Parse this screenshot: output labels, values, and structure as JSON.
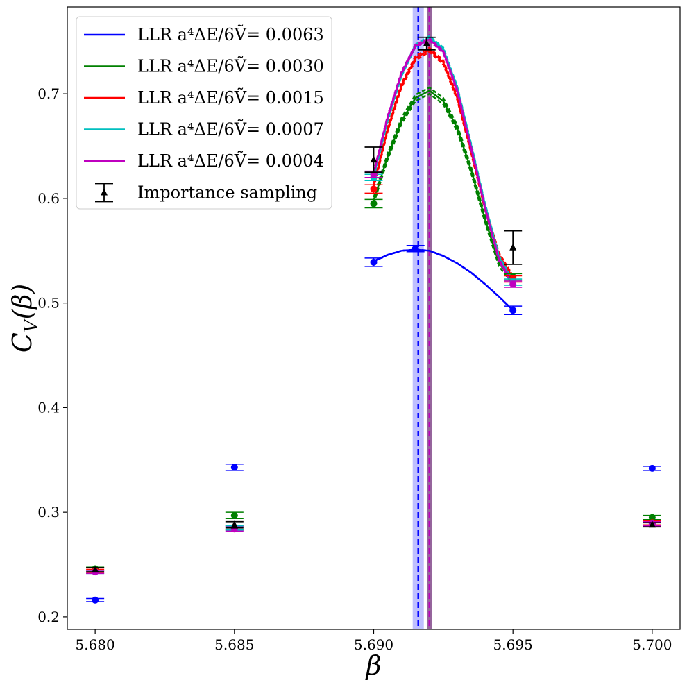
{
  "chart_data": {
    "type": "line",
    "xlabel": "β",
    "ylabel": "C_V(β)",
    "xlim": [
      5.679,
      5.701
    ],
    "ylim": [
      0.188,
      0.783
    ],
    "xticks": [
      5.68,
      5.685,
      5.69,
      5.695,
      5.7
    ],
    "yticks": [
      0.2,
      0.3,
      0.4,
      0.5,
      0.6,
      0.7
    ],
    "xtick_labels": [
      "5.680",
      "5.685",
      "5.690",
      "5.695",
      "5.700"
    ],
    "ytick_labels": [
      "0.2",
      "0.3",
      "0.4",
      "0.5",
      "0.6",
      "0.7"
    ],
    "grid": false,
    "legend_position": "top-left",
    "series": [
      {
        "name": "LLR a⁴ΔE/6Ṽ= 0.0063",
        "color": "#0000ff",
        "peak_beta": 5.6916,
        "peak_beta_err": 0.0002,
        "band_width": 3e-05,
        "curve": [
          [
            5.69,
            0.54
          ],
          [
            5.6905,
            0.546
          ],
          [
            5.691,
            0.55
          ],
          [
            5.6915,
            0.551
          ],
          [
            5.692,
            0.55
          ],
          [
            5.6925,
            0.545
          ],
          [
            5.693,
            0.538
          ],
          [
            5.6935,
            0.529
          ],
          [
            5.694,
            0.518
          ],
          [
            5.6945,
            0.506
          ],
          [
            5.695,
            0.493
          ]
        ],
        "points": [
          [
            5.68,
            0.216,
            0.0015
          ],
          [
            5.685,
            0.343,
            0.003
          ],
          [
            5.69,
            0.539,
            0.004
          ],
          [
            5.6915,
            0.552,
            0.003
          ],
          [
            5.695,
            0.493,
            0.004
          ],
          [
            5.7,
            0.342,
            0.002
          ]
        ]
      },
      {
        "name": "LLR a⁴ΔE/6Ṽ= 0.0030",
        "color": "#008000",
        "peak_beta": 5.692,
        "peak_beta_err": 5e-05,
        "band_width": 0.003,
        "curve": [
          [
            5.69,
            0.598
          ],
          [
            5.6905,
            0.64
          ],
          [
            5.691,
            0.674
          ],
          [
            5.6915,
            0.696
          ],
          [
            5.692,
            0.703
          ],
          [
            5.6925,
            0.693
          ],
          [
            5.693,
            0.667
          ],
          [
            5.6935,
            0.627
          ],
          [
            5.694,
            0.58
          ],
          [
            5.6945,
            0.538
          ],
          [
            5.695,
            0.521
          ]
        ],
        "points": [
          [
            5.68,
            0.246,
            0.0015
          ],
          [
            5.685,
            0.297,
            0.003
          ],
          [
            5.69,
            0.595,
            0.004
          ],
          [
            5.695,
            0.525,
            0.003
          ],
          [
            5.7,
            0.295,
            0.002
          ]
        ]
      },
      {
        "name": "LLR a⁴ΔE/6Ṽ= 0.0015",
        "color": "#ff0000",
        "peak_beta": 5.692,
        "peak_beta_err": 5e-05,
        "band_width": 0.002,
        "curve": [
          [
            5.69,
            0.612
          ],
          [
            5.6905,
            0.666
          ],
          [
            5.691,
            0.708
          ],
          [
            5.6915,
            0.734
          ],
          [
            5.692,
            0.742
          ],
          [
            5.6925,
            0.73
          ],
          [
            5.693,
            0.696
          ],
          [
            5.6935,
            0.645
          ],
          [
            5.694,
            0.591
          ],
          [
            5.6945,
            0.546
          ],
          [
            5.695,
            0.524
          ]
        ],
        "points": [
          [
            5.68,
            0.244,
            0.0015
          ],
          [
            5.685,
            0.285,
            0.002
          ],
          [
            5.69,
            0.609,
            0.004
          ],
          [
            5.695,
            0.523,
            0.003
          ],
          [
            5.7,
            0.29,
            0.002
          ]
        ]
      },
      {
        "name": "LLR a⁴ΔE/6Ṽ= 0.0007",
        "color": "#00bfbf",
        "peak_beta": 5.692,
        "peak_beta_err": 5e-05,
        "band_width": 0.0012,
        "curve": [
          [
            5.69,
            0.621
          ],
          [
            5.6905,
            0.675
          ],
          [
            5.691,
            0.718
          ],
          [
            5.6915,
            0.746
          ],
          [
            5.692,
            0.754
          ],
          [
            5.6925,
            0.743
          ],
          [
            5.693,
            0.706
          ],
          [
            5.6935,
            0.651
          ],
          [
            5.694,
            0.594
          ],
          [
            5.6945,
            0.544
          ],
          [
            5.695,
            0.52
          ]
        ],
        "points": [
          [
            5.68,
            0.243,
            0.0015
          ],
          [
            5.685,
            0.285,
            0.002
          ],
          [
            5.69,
            0.62,
            0.003
          ],
          [
            5.695,
            0.52,
            0.003
          ],
          [
            5.7,
            0.289,
            0.002
          ]
        ]
      },
      {
        "name": "LLR a⁴ΔE/6Ṽ= 0.0004",
        "color": "#bf00bf",
        "peak_beta": 5.692,
        "peak_beta_err": 5e-05,
        "band_width": 0.0012,
        "curve": [
          [
            5.69,
            0.624
          ],
          [
            5.6905,
            0.678
          ],
          [
            5.691,
            0.72
          ],
          [
            5.6915,
            0.746
          ],
          [
            5.692,
            0.752
          ],
          [
            5.6925,
            0.74
          ],
          [
            5.693,
            0.703
          ],
          [
            5.6935,
            0.648
          ],
          [
            5.694,
            0.591
          ],
          [
            5.6945,
            0.541
          ],
          [
            5.695,
            0.518
          ]
        ],
        "points": [
          [
            5.68,
            0.243,
            0.0015
          ],
          [
            5.685,
            0.284,
            0.002
          ],
          [
            5.69,
            0.623,
            0.003
          ],
          [
            5.695,
            0.518,
            0.003
          ],
          [
            5.7,
            0.289,
            0.002
          ]
        ]
      }
    ],
    "importance_sampling": {
      "name": "Importance sampling",
      "color": "#000000",
      "points": [
        [
          5.68,
          0.245,
          0.002
        ],
        [
          5.685,
          0.288,
          0.003
        ],
        [
          5.69,
          0.637,
          0.012
        ],
        [
          5.6919,
          0.748,
          0.006
        ],
        [
          5.695,
          0.553,
          0.016
        ],
        [
          5.7,
          0.288,
          0.002
        ]
      ]
    }
  }
}
